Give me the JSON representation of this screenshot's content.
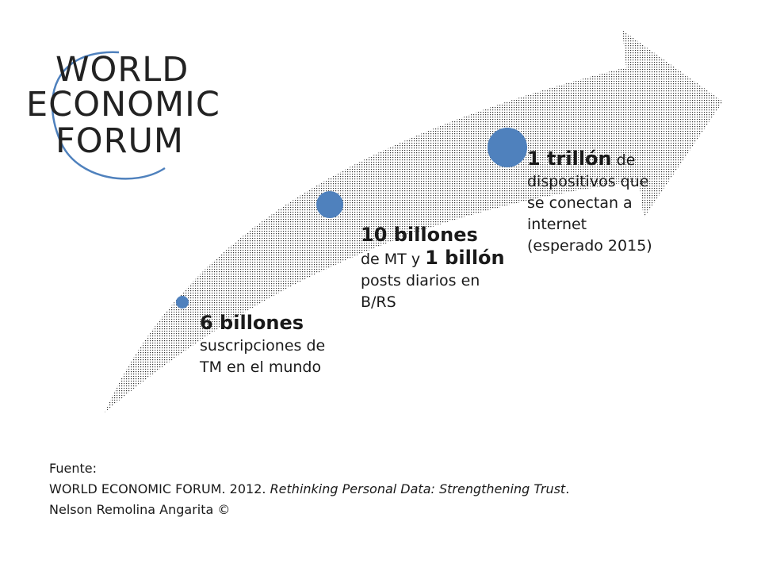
{
  "logo": {
    "line1": "WORLD",
    "line2": "ECONOMIC",
    "line3": "FORUM"
  },
  "milestones": [
    {
      "bold": "6  billones",
      "rest": "suscripciones de TM en el mundo"
    },
    {
      "bold": "10 billones",
      "mid": "de MT y ",
      "bold2": "1 billón",
      "rest": " posts diarios en  B/RS"
    },
    {
      "bold": "1 trillón",
      "mid": " de",
      "rest": "dispositivos que se conectan a internet (esperado 2015)"
    }
  ],
  "source": {
    "label": "Fuente:",
    "org": "WORLD ECONOMIC FORUM. 2012. ",
    "title": "Rethinking Personal Data: Strengthening Trust",
    "end": ".",
    "author": "Nelson Remolina Angarita ©"
  },
  "colors": {
    "dot": "#4f81bd",
    "arrow_dots": "#333333",
    "logo_text": "#222222"
  }
}
